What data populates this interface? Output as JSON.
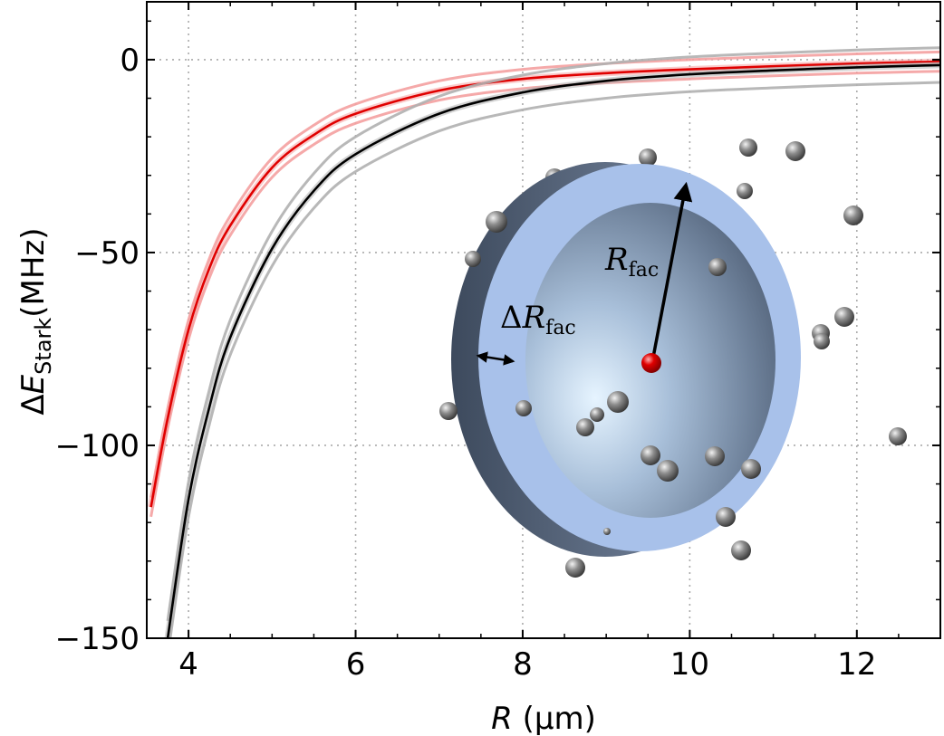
{
  "chart_data": {
    "type": "line",
    "title": "",
    "xlabel": {
      "symbol": "R",
      "unit": "(μm)"
    },
    "ylabel": {
      "delta": "Δ",
      "symbol": "E",
      "subscript": "Stark",
      "unit": "(MHz)"
    },
    "xlim": [
      3.5,
      13
    ],
    "ylim": [
      -150,
      15
    ],
    "xticks": [
      4,
      6,
      8,
      10,
      12
    ],
    "yticks": [
      0,
      -50,
      -100,
      -150
    ],
    "ytick_labels": [
      "0",
      "−50",
      "−100",
      "−150"
    ],
    "grid": true,
    "series": [
      {
        "color": "#e00000",
        "band_color": "#f4a0a0",
        "x": [
          3.55,
          3.75,
          4.0,
          4.25,
          4.5,
          5.0,
          5.5,
          6.0,
          7.0,
          8.0,
          9.0,
          10.0,
          11.0,
          12.0,
          13.0
        ],
        "y": [
          -116,
          -93,
          -70,
          -54,
          -43,
          -28,
          -19.5,
          -14,
          -8,
          -5,
          -3.5,
          -2.5,
          -1.7,
          -1.0,
          -0.5
        ],
        "band_width": 2.5
      },
      {
        "color": "#000000",
        "band_color": "#b0b0b0",
        "x": [
          3.75,
          4.0,
          4.25,
          4.5,
          5.0,
          5.5,
          6.0,
          7.0,
          8.0,
          9.0,
          10.0,
          11.0,
          12.0,
          13.0
        ],
        "y": [
          -150,
          -114,
          -90,
          -72,
          -49,
          -34,
          -24.5,
          -14,
          -8.5,
          -5.5,
          -3.8,
          -2.8,
          -2.0,
          -1.4
        ],
        "band_width": 4.5
      }
    ],
    "inset": {
      "labels": {
        "radius": {
          "symbol": "R",
          "subscript": "fac"
        },
        "thickness": {
          "delta": "Δ",
          "symbol": "R",
          "subscript": "fac"
        }
      },
      "shell_color": "#a8c1ea",
      "center_dot_color": "#e00000",
      "atom_color": "#8c8c8c"
    }
  }
}
